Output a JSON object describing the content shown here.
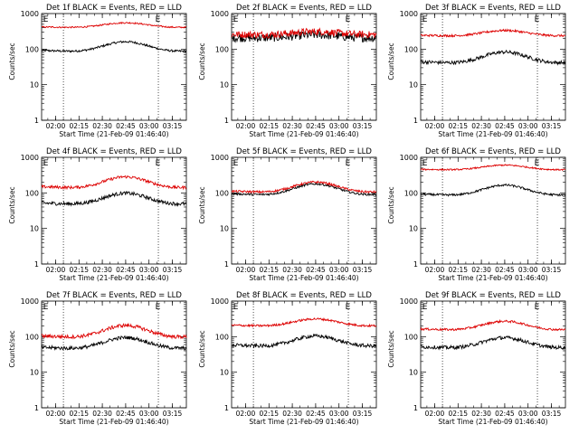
{
  "chart_data": [
    {
      "type": "line",
      "title": "Det 1f BLACK = Events, RED = LLD",
      "ylabel": "Counts/sec",
      "xlabel": "Start Time (21-Feb-09 01:46:40)",
      "x_ticks": [
        "02:00",
        "02:15",
        "02:30",
        "02:45",
        "03:00",
        "03:15"
      ],
      "y_ticks": [
        "1",
        "10",
        "100",
        "1000"
      ],
      "yscale": "log",
      "ylim": [
        1,
        1000
      ],
      "xlim": [
        "01:51",
        "03:24"
      ],
      "markers": [
        "E",
        "E"
      ],
      "series": [
        {
          "color": "#000000",
          "base": 92,
          "amp": 0.25,
          "noise": 0.03
        },
        {
          "color": "#dd0000",
          "base": 420,
          "amp": 0.12,
          "noise": 0.02
        }
      ]
    },
    {
      "type": "line",
      "title": "Det 2f BLACK = Events, RED = LLD",
      "ylabel": "Counts/sec",
      "xlabel": "Start Time (21-Feb-09 01:46:40)",
      "x_ticks": [
        "02:00",
        "02:15",
        "02:30",
        "02:45",
        "03:00",
        "03:15"
      ],
      "y_ticks": [
        "1",
        "10",
        "100",
        "1000"
      ],
      "yscale": "log",
      "ylim": [
        1,
        1000
      ],
      "xlim": [
        "01:51",
        "03:24"
      ],
      "markers": [
        "E",
        "E"
      ],
      "series": [
        {
          "color": "#000000",
          "base": 210,
          "amp": 0.08,
          "noise": 0.12
        },
        {
          "color": "#dd0000",
          "base": 260,
          "amp": 0.08,
          "noise": 0.1
        }
      ]
    },
    {
      "type": "line",
      "title": "Det 3f BLACK = Events, RED = LLD",
      "ylabel": "Counts/sec",
      "xlabel": "Start Time (21-Feb-09 01:46:40)",
      "x_ticks": [
        "02:00",
        "02:15",
        "02:30",
        "02:45",
        "03:00",
        "03:15"
      ],
      "y_ticks": [
        "1",
        "10",
        "100",
        "1000"
      ],
      "yscale": "log",
      "ylim": [
        1,
        1000
      ],
      "xlim": [
        "01:51",
        "03:24"
      ],
      "markers": [
        "E",
        "E"
      ],
      "series": [
        {
          "color": "#000000",
          "base": 44,
          "amp": 0.28,
          "noise": 0.05
        },
        {
          "color": "#dd0000",
          "base": 245,
          "amp": 0.14,
          "noise": 0.03
        }
      ]
    },
    {
      "type": "line",
      "title": "Det 4f BLACK = Events, RED = LLD",
      "ylabel": "Counts/sec",
      "xlabel": "Start Time (21-Feb-09 01:46:40)",
      "x_ticks": [
        "02:00",
        "02:15",
        "02:30",
        "02:45",
        "03:00",
        "03:15"
      ],
      "y_ticks": [
        "1",
        "10",
        "100",
        "1000"
      ],
      "yscale": "log",
      "ylim": [
        1,
        1000
      ],
      "xlim": [
        "01:51",
        "03:24"
      ],
      "markers": [
        "E",
        "E"
      ],
      "series": [
        {
          "color": "#000000",
          "base": 52,
          "amp": 0.28,
          "noise": 0.05
        },
        {
          "color": "#dd0000",
          "base": 150,
          "amp": 0.28,
          "noise": 0.04
        }
      ]
    },
    {
      "type": "line",
      "title": "Det 5f BLACK = Events, RED = LLD",
      "ylabel": "Counts/sec",
      "xlabel": "Start Time (21-Feb-09 01:46:40)",
      "x_ticks": [
        "02:00",
        "02:15",
        "02:30",
        "02:45",
        "03:00",
        "03:15"
      ],
      "y_ticks": [
        "1",
        "10",
        "100",
        "1000"
      ],
      "yscale": "log",
      "ylim": [
        1,
        1000
      ],
      "xlim": [
        "01:51",
        "03:24"
      ],
      "markers": [
        "E",
        "E"
      ],
      "series": [
        {
          "color": "#000000",
          "base": 95,
          "amp": 0.28,
          "noise": 0.03
        },
        {
          "color": "#dd0000",
          "base": 112,
          "amp": 0.26,
          "noise": 0.03
        }
      ]
    },
    {
      "type": "line",
      "title": "Det 6f BLACK = Events, RED = LLD",
      "ylabel": "Counts/sec",
      "xlabel": "Start Time (21-Feb-09 01:46:40)",
      "x_ticks": [
        "02:00",
        "02:15",
        "02:30",
        "02:45",
        "03:00",
        "03:15"
      ],
      "y_ticks": [
        "1",
        "10",
        "100",
        "1000"
      ],
      "yscale": "log",
      "ylim": [
        1,
        1000
      ],
      "xlim": [
        "01:51",
        "03:24"
      ],
      "markers": [
        "E",
        "E"
      ],
      "series": [
        {
          "color": "#000000",
          "base": 92,
          "amp": 0.26,
          "noise": 0.03
        },
        {
          "color": "#dd0000",
          "base": 460,
          "amp": 0.12,
          "noise": 0.02
        }
      ]
    },
    {
      "type": "line",
      "title": "Det 7f BLACK = Events, RED = LLD",
      "ylabel": "Counts/sec",
      "xlabel": "Start Time (21-Feb-09 01:46:40)",
      "x_ticks": [
        "02:00",
        "02:15",
        "02:30",
        "02:45",
        "03:00",
        "03:15"
      ],
      "y_ticks": [
        "1",
        "10",
        "100",
        "1000"
      ],
      "yscale": "log",
      "ylim": [
        1,
        1000
      ],
      "xlim": [
        "01:51",
        "03:24"
      ],
      "markers": [
        "E",
        "E"
      ],
      "series": [
        {
          "color": "#000000",
          "base": 50,
          "amp": 0.28,
          "noise": 0.05
        },
        {
          "color": "#dd0000",
          "base": 105,
          "amp": 0.3,
          "noise": 0.05
        }
      ]
    },
    {
      "type": "line",
      "title": "Det 8f BLACK = Events, RED = LLD",
      "ylabel": "Counts/sec",
      "xlabel": "Start Time (21-Feb-09 01:46:40)",
      "x_ticks": [
        "02:00",
        "02:15",
        "02:30",
        "02:45",
        "03:00",
        "03:15"
      ],
      "y_ticks": [
        "1",
        "10",
        "100",
        "1000"
      ],
      "yscale": "log",
      "ylim": [
        1,
        1000
      ],
      "xlim": [
        "01:51",
        "03:24"
      ],
      "markers": [
        "E",
        "E"
      ],
      "series": [
        {
          "color": "#000000",
          "base": 58,
          "amp": 0.26,
          "noise": 0.05
        },
        {
          "color": "#dd0000",
          "base": 210,
          "amp": 0.18,
          "noise": 0.03
        }
      ]
    },
    {
      "type": "line",
      "title": "Det 9f BLACK = Events, RED = LLD",
      "ylabel": "Counts/sec",
      "xlabel": "Start Time (21-Feb-09 01:46:40)",
      "x_ticks": [
        "02:00",
        "02:15",
        "02:30",
        "02:45",
        "03:00",
        "03:15"
      ],
      "y_ticks": [
        "1",
        "10",
        "100",
        "1000"
      ],
      "yscale": "log",
      "ylim": [
        1,
        1000
      ],
      "xlim": [
        "01:51",
        "03:24"
      ],
      "markers": [
        "E",
        "E"
      ],
      "series": [
        {
          "color": "#000000",
          "base": 52,
          "amp": 0.26,
          "noise": 0.05
        },
        {
          "color": "#dd0000",
          "base": 165,
          "amp": 0.22,
          "noise": 0.03
        }
      ]
    }
  ]
}
